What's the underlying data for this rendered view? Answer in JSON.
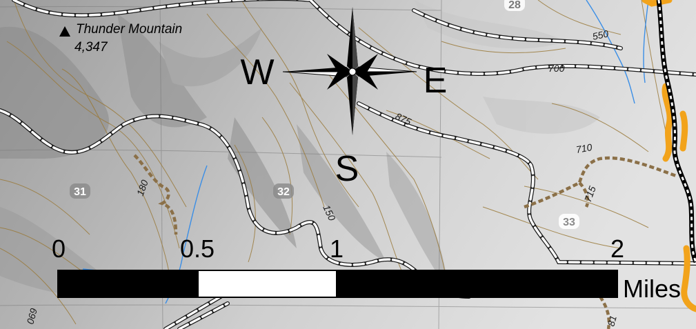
{
  "peak": {
    "name": "Thunder Mountain",
    "elevation": "4,347"
  },
  "compass": {
    "north": "",
    "west": "W",
    "east": "E",
    "south": "S"
  },
  "contours": {
    "c550": "550",
    "c700": "700",
    "c875": "875",
    "c710": "710",
    "c715": "715",
    "c180": "180",
    "c150": "150",
    "c069": "069",
    "c81": "81"
  },
  "sections": {
    "s28": "28",
    "s31": "31",
    "s32": "32",
    "s33": "33"
  },
  "scalebar": {
    "l0": "0",
    "l05": "0.5",
    "l1": "1",
    "l2": "2",
    "unit": "Miles"
  },
  "colors": {
    "road": "#ffffff",
    "trail": "#8b7048",
    "railway": "#000000",
    "highlight": "#f2a31b",
    "water": "#3a8ee6",
    "contour": "#9a7a3a"
  }
}
